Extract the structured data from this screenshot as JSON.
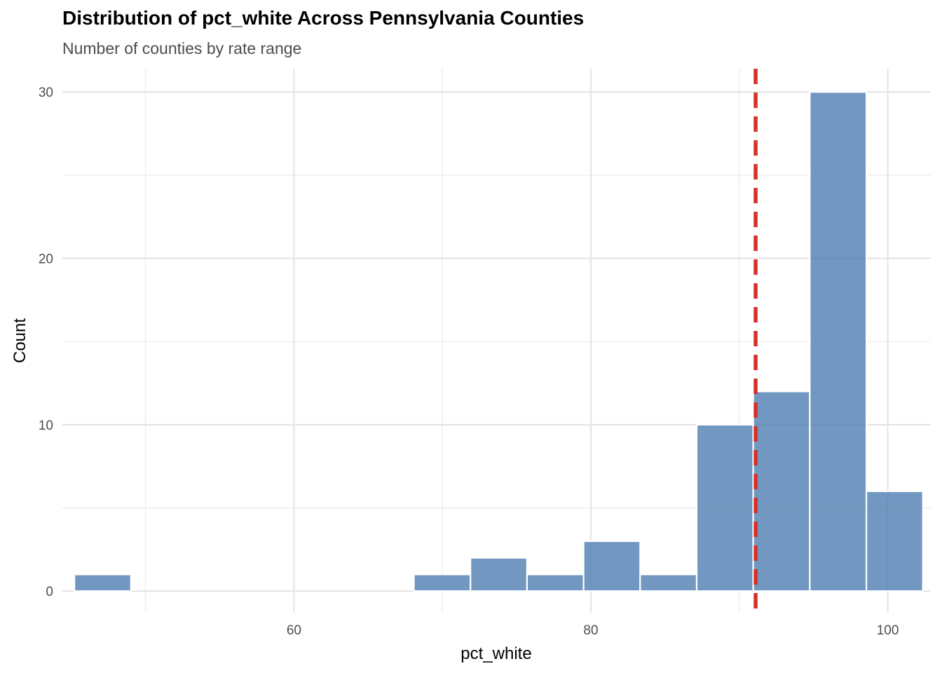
{
  "chart_data": {
    "type": "bar",
    "title": "Distribution of pct_white Across Pennsylvania Counties",
    "subtitle": "Number of counties by rate range",
    "xlabel": "pct_white",
    "ylabel": "Count",
    "xlim": [
      44.4,
      102.9
    ],
    "ylim": [
      -1.3,
      31.4
    ],
    "x_ticks": [
      60,
      80,
      100
    ],
    "x_ticks_minor": [
      50,
      70,
      90
    ],
    "y_ticks": [
      0,
      10,
      20,
      30
    ],
    "y_ticks_minor": [
      5,
      15,
      25
    ],
    "bins": [
      {
        "x0": 45.21,
        "x1": 49.02,
        "count": 1
      },
      {
        "x0": 49.02,
        "x1": 52.84,
        "count": 0
      },
      {
        "x0": 52.84,
        "x1": 56.65,
        "count": 0
      },
      {
        "x0": 56.65,
        "x1": 60.46,
        "count": 0
      },
      {
        "x0": 60.46,
        "x1": 64.27,
        "count": 0
      },
      {
        "x0": 64.27,
        "x1": 68.08,
        "count": 0
      },
      {
        "x0": 68.08,
        "x1": 71.89,
        "count": 1
      },
      {
        "x0": 71.89,
        "x1": 75.7,
        "count": 2
      },
      {
        "x0": 75.7,
        "x1": 79.51,
        "count": 1
      },
      {
        "x0": 79.51,
        "x1": 83.32,
        "count": 3
      },
      {
        "x0": 83.32,
        "x1": 87.13,
        "count": 1
      },
      {
        "x0": 87.13,
        "x1": 90.94,
        "count": 10
      },
      {
        "x0": 90.94,
        "x1": 94.75,
        "count": 12
      },
      {
        "x0": 94.75,
        "x1": 98.56,
        "count": 30
      },
      {
        "x0": 98.56,
        "x1": 102.37,
        "count": 6
      }
    ],
    "reference_line": {
      "x": 91.1,
      "style": "dashed",
      "color": "#d73027"
    },
    "bar_color": "#4a7bb0",
    "bar_outline": "#ffffff",
    "grid": true,
    "legend": "none"
  }
}
